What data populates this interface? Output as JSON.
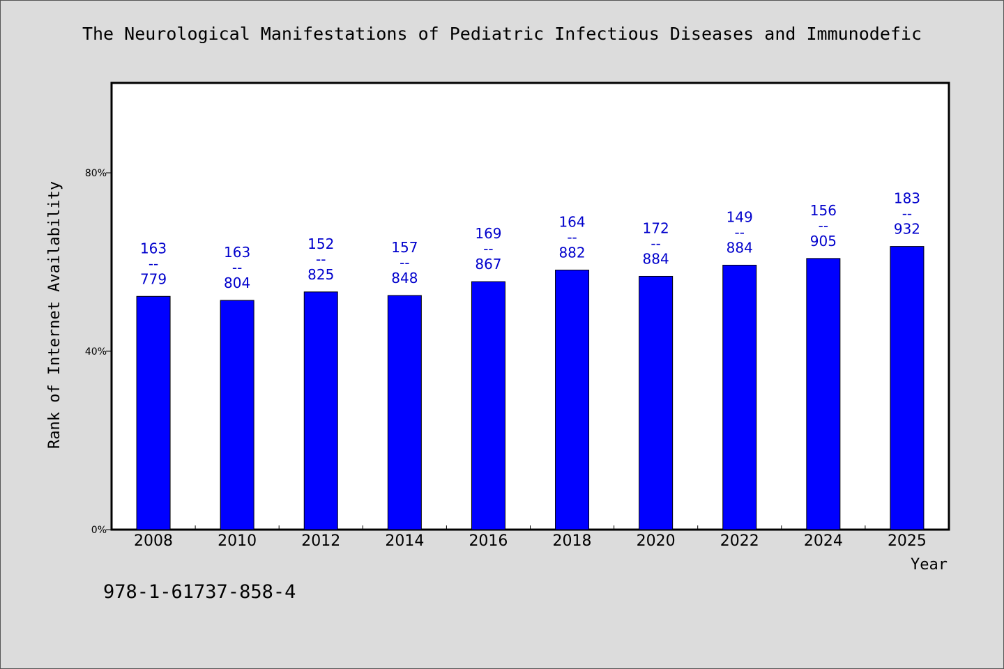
{
  "page": {
    "title": "The Neurological Manifestations of Pediatric Infectious Diseases and Immunodefic",
    "isbn": "978-1-61737-858-4"
  },
  "colors": {
    "background": "#dcdcdc",
    "plot_background": "#ffffff",
    "bar": "#0000ff",
    "label": "#0000cc",
    "axis": "#000000"
  },
  "chart_data": {
    "type": "bar",
    "title": "The Neurological Manifestations of Pediatric Infectious Diseases and Immunodefic",
    "xlabel": "Year",
    "ylabel": "Rank of Internet Availability",
    "categories": [
      "2008",
      "2010",
      "2012",
      "2014",
      "2016",
      "2018",
      "2020",
      "2022",
      "2024",
      "2025"
    ],
    "values": [
      0.523,
      0.514,
      0.533,
      0.525,
      0.556,
      0.582,
      0.568,
      0.593,
      0.608,
      0.635
    ],
    "value_labels": [
      [
        "163",
        "--",
        "779"
      ],
      [
        "163",
        "--",
        "804"
      ],
      [
        "152",
        "--",
        "825"
      ],
      [
        "157",
        "--",
        "848"
      ],
      [
        "169",
        "--",
        "867"
      ],
      [
        "164",
        "--",
        "882"
      ],
      [
        "172",
        "--",
        "884"
      ],
      [
        "149",
        "--",
        "884"
      ],
      [
        "156",
        "--",
        "905"
      ],
      [
        "183",
        "--",
        "932"
      ]
    ],
    "yticks": [
      {
        "value": 0,
        "label": "0%"
      },
      {
        "value": 0.4,
        "label": "40%"
      },
      {
        "value": 0.8,
        "label": "80%"
      }
    ],
    "ylim": [
      0,
      1
    ],
    "grid": false,
    "legend": "none"
  }
}
